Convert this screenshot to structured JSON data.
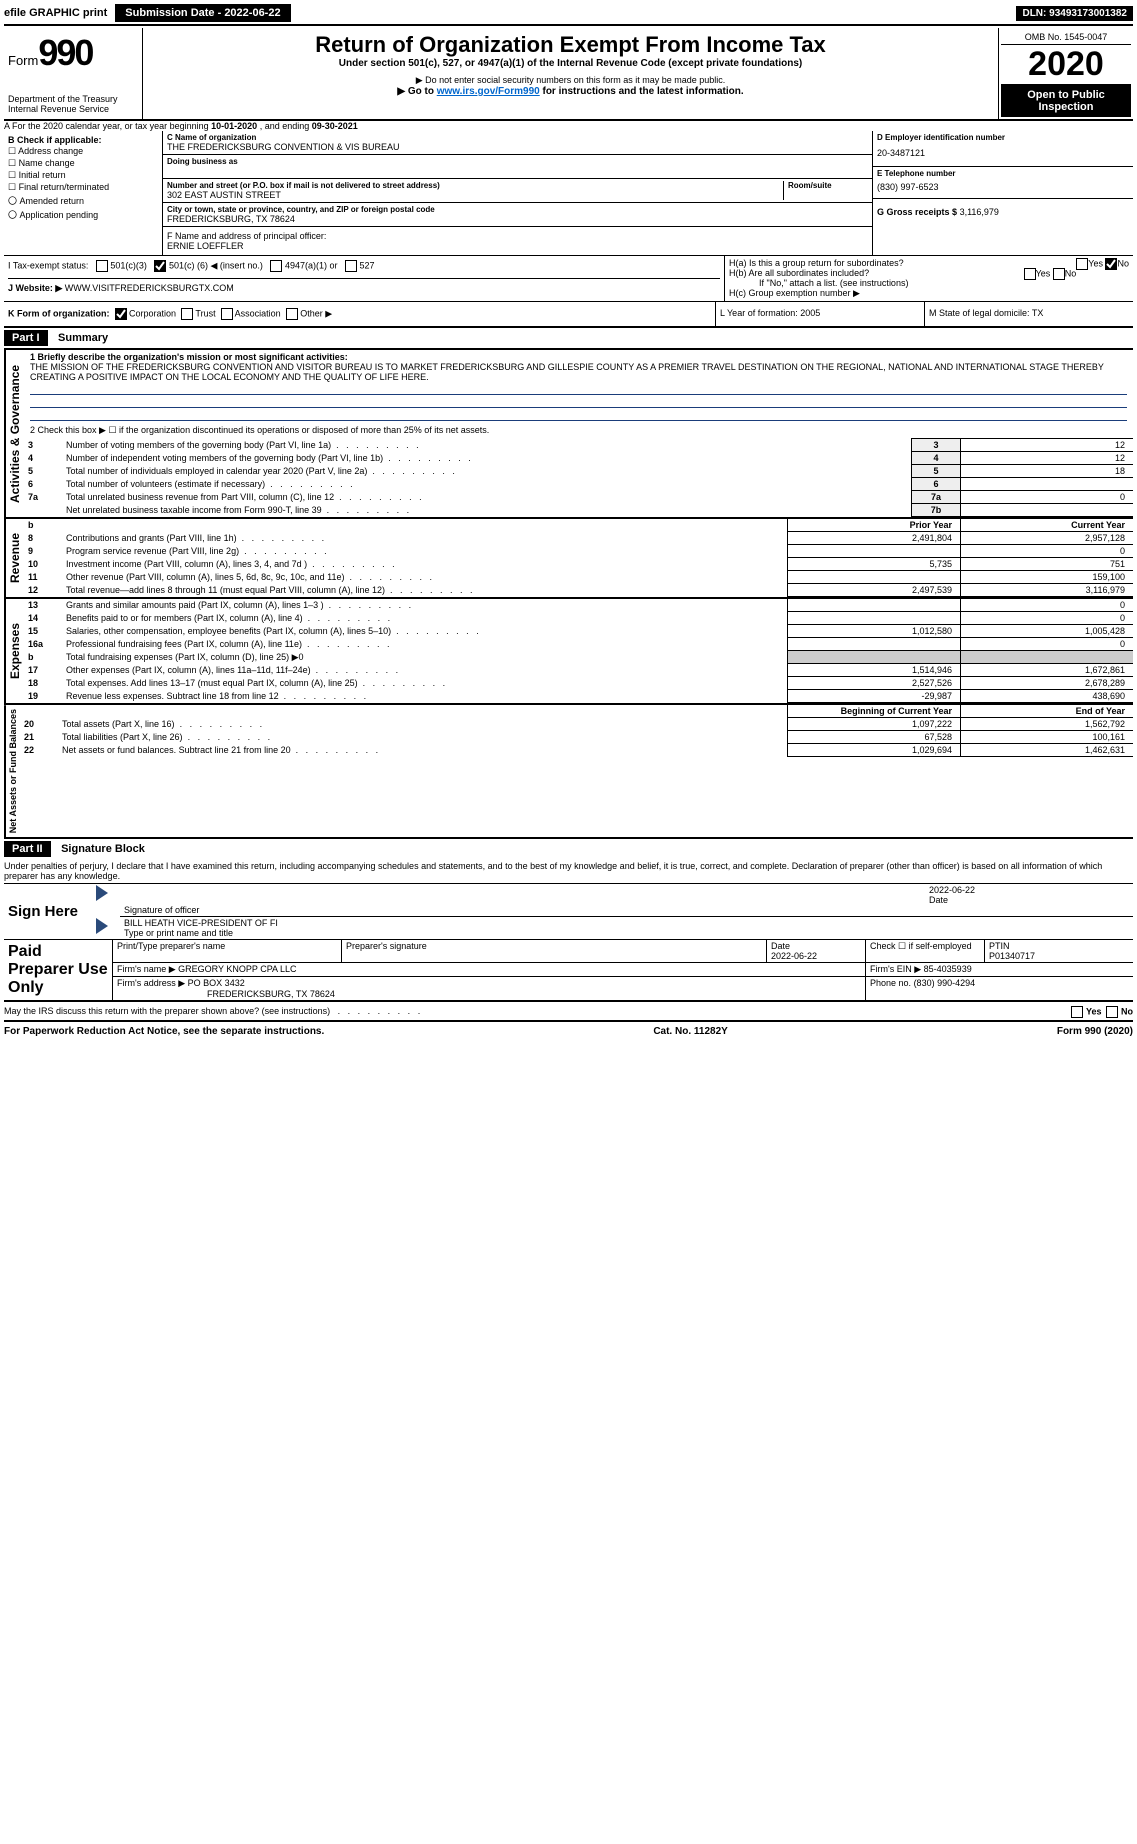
{
  "topbar": {
    "efile": "efile GRAPHIC print",
    "submission_label": "Submission Date - 2022-06-22",
    "dln": "DLN: 93493173001382"
  },
  "header": {
    "form_word": "Form",
    "form_number": "990",
    "dept1": "Department of the Treasury",
    "dept2": "Internal Revenue Service",
    "title": "Return of Organization Exempt From Income Tax",
    "sub1": "Under section 501(c), 527, or 4947(a)(1) of the Internal Revenue Code (except private foundations)",
    "sub2": "▶ Do not enter social security numbers on this form as it may be made public.",
    "sub3_a": "▶ Go to ",
    "sub3_link": "www.irs.gov/Form990",
    "sub3_b": " for instructions and the latest information.",
    "omb": "OMB No. 1545-0047",
    "year": "2020",
    "open": "Open to Public Inspection"
  },
  "period": {
    "text_a": "A For the 2020 calendar year, or tax year beginning ",
    "begin": "10-01-2020",
    "text_b": " , and ending ",
    "end": "09-30-2021"
  },
  "B": {
    "label": "B Check if applicable:",
    "options": [
      "Address change",
      "Name change",
      "Initial return",
      "Final return/terminated",
      "Amended return",
      "Application pending"
    ]
  },
  "C": {
    "name_lbl": "C Name of organization",
    "name": "THE FREDERICKSBURG CONVENTION & VIS BUREAU",
    "dba_lbl": "Doing business as",
    "street_lbl": "Number and street (or P.O. box if mail is not delivered to street address)",
    "room_lbl": "Room/suite",
    "street": "302 EAST AUSTIN STREET",
    "city_lbl": "City or town, state or province, country, and ZIP or foreign postal code",
    "city": "FREDERICKSBURG, TX  78624",
    "F_lbl": "F Name and address of principal officer:",
    "F_name": "ERNIE LOEFFLER"
  },
  "D": {
    "ein_lbl": "D Employer identification number",
    "ein": "20-3487121",
    "phone_lbl": "E Telephone number",
    "phone": "(830) 997-6523",
    "gross_lbl": "G Gross receipts $",
    "gross": "3,116,979"
  },
  "H": {
    "a": "H(a)  Is this a group return for subordinates?",
    "b": "H(b)  Are all subordinates included?",
    "bnote": "If \"No,\" attach a list. (see instructions)",
    "c": "H(c)  Group exemption number ▶",
    "yes": "Yes",
    "no": "No"
  },
  "I": {
    "lbl": "I   Tax-exempt status:",
    "o1": "501(c)(3)",
    "o2_a": "501(c) (",
    "o2_b": "6",
    "o2_c": ") ◀ (insert no.)",
    "o3": "4947(a)(1) or",
    "o4": "527"
  },
  "J": {
    "lbl": "J   Website: ▶",
    "val": "WWW.VISITFREDERICKSBURGTX.COM"
  },
  "K": {
    "lbl": "K Form of organization:",
    "o1": "Corporation",
    "o2": "Trust",
    "o3": "Association",
    "o4": "Other ▶",
    "L": "L Year of formation: 2005",
    "M": "M State of legal domicile: TX"
  },
  "part1": {
    "bar": "Part I",
    "title": "Summary"
  },
  "summary": {
    "l1": "1   Briefly describe the organization's mission or most significant activities:",
    "mission": "THE MISSION OF THE FREDERICKSBURG CONVENTION AND VISITOR BUREAU IS TO MARKET FREDERICKSBURG AND GILLESPIE COUNTY AS A PREMIER TRAVEL DESTINATION ON THE REGIONAL, NATIONAL AND INTERNATIONAL STAGE THEREBY CREATING A POSITIVE IMPACT ON THE LOCAL ECONOMY AND THE QUALITY OF LIFE HERE.",
    "l2": "2   Check this box ▶ ☐ if the organization discontinued its operations or disposed of more than 25% of its net assets.",
    "rows_ag": [
      {
        "n": "3",
        "t": "Number of voting members of the governing body (Part VI, line 1a)",
        "k": "3",
        "v": "12"
      },
      {
        "n": "4",
        "t": "Number of independent voting members of the governing body (Part VI, line 1b)",
        "k": "4",
        "v": "12"
      },
      {
        "n": "5",
        "t": "Total number of individuals employed in calendar year 2020 (Part V, line 2a)",
        "k": "5",
        "v": "18"
      },
      {
        "n": "6",
        "t": "Total number of volunteers (estimate if necessary)",
        "k": "6",
        "v": ""
      },
      {
        "n": "7a",
        "t": "Total unrelated business revenue from Part VIII, column (C), line 12",
        "k": "7a",
        "v": "0"
      },
      {
        "n": "",
        "t": "Net unrelated business taxable income from Form 990-T, line 39",
        "k": "7b",
        "v": ""
      }
    ],
    "hdr_b": "b",
    "hdr_prior": "Prior Year",
    "hdr_curr": "Current Year",
    "rev": [
      {
        "n": "8",
        "t": "Contributions and grants (Part VIII, line 1h)",
        "p": "2,491,804",
        "c": "2,957,128"
      },
      {
        "n": "9",
        "t": "Program service revenue (Part VIII, line 2g)",
        "p": "",
        "c": "0"
      },
      {
        "n": "10",
        "t": "Investment income (Part VIII, column (A), lines 3, 4, and 7d )",
        "p": "5,735",
        "c": "751"
      },
      {
        "n": "11",
        "t": "Other revenue (Part VIII, column (A), lines 5, 6d, 8c, 9c, 10c, and 11e)",
        "p": "",
        "c": "159,100"
      },
      {
        "n": "12",
        "t": "Total revenue—add lines 8 through 11 (must equal Part VIII, column (A), line 12)",
        "p": "2,497,539",
        "c": "3,116,979"
      }
    ],
    "exp": [
      {
        "n": "13",
        "t": "Grants and similar amounts paid (Part IX, column (A), lines 1–3 )",
        "p": "",
        "c": "0"
      },
      {
        "n": "14",
        "t": "Benefits paid to or for members (Part IX, column (A), line 4)",
        "p": "",
        "c": "0"
      },
      {
        "n": "15",
        "t": "Salaries, other compensation, employee benefits (Part IX, column (A), lines 5–10)",
        "p": "1,012,580",
        "c": "1,005,428"
      },
      {
        "n": "16a",
        "t": "Professional fundraising fees (Part IX, column (A), line 11e)",
        "p": "",
        "c": "0"
      },
      {
        "n": "b",
        "t": "Total fundraising expenses (Part IX, column (D), line 25) ▶0",
        "p": "—",
        "c": "—"
      },
      {
        "n": "17",
        "t": "Other expenses (Part IX, column (A), lines 11a–11d, 11f–24e)",
        "p": "1,514,946",
        "c": "1,672,861"
      },
      {
        "n": "18",
        "t": "Total expenses. Add lines 13–17 (must equal Part IX, column (A), line 25)",
        "p": "2,527,526",
        "c": "2,678,289"
      },
      {
        "n": "19",
        "t": "Revenue less expenses. Subtract line 18 from line 12",
        "p": "-29,987",
        "c": "438,690"
      }
    ],
    "na_hdr_b": "Beginning of Current Year",
    "na_hdr_e": "End of Year",
    "na": [
      {
        "n": "20",
        "t": "Total assets (Part X, line 16)",
        "p": "1,097,222",
        "c": "1,562,792"
      },
      {
        "n": "21",
        "t": "Total liabilities (Part X, line 26)",
        "p": "67,528",
        "c": "100,161"
      },
      {
        "n": "22",
        "t": "Net assets or fund balances. Subtract line 21 from line 20",
        "p": "1,029,694",
        "c": "1,462,631"
      }
    ],
    "vert_ag": "Activities & Governance",
    "vert_rev": "Revenue",
    "vert_exp": "Expenses",
    "vert_na": "Net Assets or Fund Balances"
  },
  "part2": {
    "bar": "Part II",
    "title": "Signature Block"
  },
  "sig": {
    "penalty": "Under penalties of perjury, I declare that I have examined this return, including accompanying schedules and statements, and to the best of my knowledge and belief, it is true, correct, and complete. Declaration of preparer (other than officer) is based on all information of which preparer has any knowledge.",
    "sign_here": "Sign Here",
    "sig_officer": "Signature of officer",
    "date": "Date",
    "date_val": "2022-06-22",
    "name_title": "BILL HEATH  VICE-PRESIDENT OF FI",
    "type_name": "Type or print name and title",
    "paid": "Paid Preparer Use Only",
    "print_name": "Print/Type preparer's name",
    "prep_sig": "Preparer's signature",
    "prep_date": "Date",
    "prep_date_v": "2022-06-22",
    "check_self": "Check ☐ if self-employed",
    "ptin_lbl": "PTIN",
    "ptin": "P01340717",
    "firm_name_lbl": "Firm's name     ▶",
    "firm_name": "GREGORY KNOPP CPA LLC",
    "firm_ein_lbl": "Firm's EIN ▶",
    "firm_ein": "85-4035939",
    "firm_addr_lbl": "Firm's address ▶",
    "firm_addr1": "PO BOX 3432",
    "firm_addr2": "FREDERICKSBURG, TX  78624",
    "firm_phone_lbl": "Phone no.",
    "firm_phone": "(830) 990-4294",
    "may_irs": "May the IRS discuss this return with the preparer shown above? (see instructions)"
  },
  "footer": {
    "pra": "For Paperwork Reduction Act Notice, see the separate instructions.",
    "cat": "Cat. No. 11282Y",
    "form": "Form 990 (2020)"
  }
}
